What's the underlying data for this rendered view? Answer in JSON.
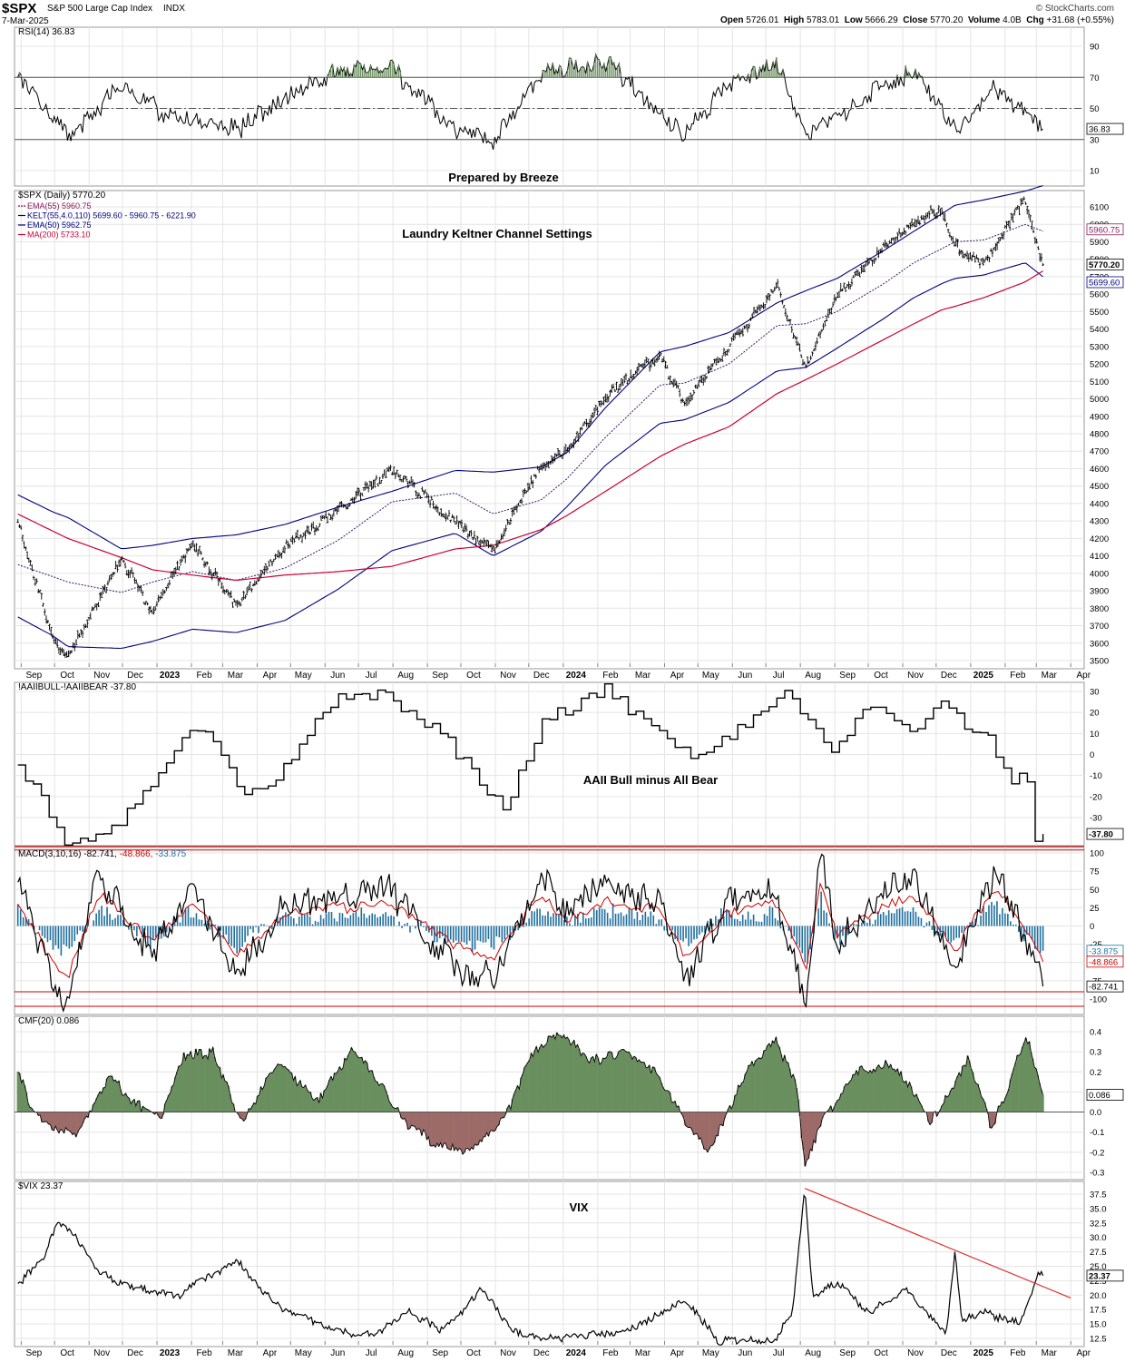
{
  "header": {
    "symbol": "$SPX",
    "name": "S&P 500 Large Cap Index",
    "exchange": "INDX",
    "date": "7-Mar-2025",
    "watermark": "© StockCharts.com",
    "ohlc": {
      "open_label": "Open",
      "open": "5726.01",
      "high_label": "High",
      "high": "5783.01",
      "low_label": "Low",
      "low": "5666.29",
      "close_label": "Close",
      "close": "5770.20",
      "volume_label": "Volume",
      "volume": "4.0B",
      "chg_label": "Chg",
      "chg": "+31.68 (+0.55%)"
    }
  },
  "x_axis": {
    "labels": [
      "Sep",
      "Oct",
      "Nov",
      "Dec",
      "2023",
      "Feb",
      "Mar",
      "Apr",
      "May",
      "Jun",
      "Jul",
      "Aug",
      "Sep",
      "Oct",
      "Nov",
      "Dec",
      "2024",
      "Feb",
      "Mar",
      "Apr",
      "May",
      "Jun",
      "Jul",
      "Aug",
      "Sep",
      "Oct",
      "Nov",
      "Dec",
      "2025",
      "Feb",
      "Mar",
      "Apr"
    ],
    "bold": [
      "2023",
      "2024",
      "2025"
    ]
  },
  "chart_data": [
    {
      "id": "rsi",
      "type": "line",
      "title": "RSI(14) 36.83",
      "ylim": [
        0,
        100
      ],
      "ticks": [
        10,
        30,
        50,
        70,
        90
      ],
      "reference_lines": [
        30,
        50,
        70
      ],
      "last_value_label": "36.83",
      "last_value": 36.83,
      "annotation": "Prepared by Breeze",
      "x": [
        "2022-08-29",
        "2022-10-13",
        "2022-11-30",
        "2023-01-12",
        "2023-03-13",
        "2023-04-26",
        "2023-06-13",
        "2023-07-31",
        "2023-09-26",
        "2023-10-30",
        "2023-12-12",
        "2024-02-08",
        "2024-04-19",
        "2024-05-29",
        "2024-07-11",
        "2024-08-06",
        "2024-10-15",
        "2024-11-11",
        "2024-12-18",
        "2025-01-22",
        "2025-03-07"
      ],
      "values": [
        70,
        32,
        64,
        45,
        36,
        58,
        74,
        76,
        35,
        30,
        72,
        80,
        33,
        67,
        80,
        32,
        67,
        72,
        35,
        64,
        36.83
      ]
    },
    {
      "id": "price",
      "type": "line",
      "title": "$SPX (Daily) 5770.20",
      "annotation": "Laundry Keltner Channel Settings",
      "legend": [
        {
          "label": "EMA(55) 5960.75",
          "color": "#8b1a5a",
          "dashed": true
        },
        {
          "label": "KELT(55,4.0,110) 5699.60 - 5960.75 - 6221.90",
          "color": "#000080",
          "dashed": false
        },
        {
          "label": "EMA(50) 5962.75",
          "color": "#000080",
          "dashed": false
        },
        {
          "label": "MA(200) 5733.10",
          "color": "#cc0033",
          "dashed": false
        }
      ],
      "ylim": [
        3450,
        6200
      ],
      "ticks": [
        3500,
        3600,
        3700,
        3800,
        3900,
        4000,
        4100,
        4200,
        4300,
        4400,
        4500,
        4600,
        4700,
        4800,
        4900,
        5000,
        5100,
        5200,
        5300,
        5400,
        5500,
        5600,
        5700,
        5800,
        5900,
        6000,
        6100
      ],
      "last_value_labels": [
        {
          "label": "5960.75",
          "value": 5960.75
        },
        {
          "label": "5770.20",
          "value": 5770.2
        },
        {
          "label": "5699.60",
          "value": 5699.6
        }
      ],
      "x": [
        "2022-08-29",
        "2022-09-30",
        "2022-10-13",
        "2022-11-30",
        "2022-12-28",
        "2023-02-02",
        "2023-03-13",
        "2023-04-26",
        "2023-06-13",
        "2023-07-31",
        "2023-09-26",
        "2023-10-30",
        "2023-12-12",
        "2024-01-04",
        "2024-02-08",
        "2024-03-28",
        "2024-04-19",
        "2024-05-29",
        "2024-07-11",
        "2024-08-06",
        "2024-09-03",
        "2024-10-15",
        "2024-11-11",
        "2024-12-06",
        "2024-12-18",
        "2025-01-13",
        "2025-02-19",
        "2025-03-07"
      ],
      "series": [
        {
          "name": "$SPX",
          "values": [
            4300,
            3620,
            3530,
            4080,
            3780,
            4180,
            3810,
            4150,
            4370,
            4590,
            4300,
            4130,
            4620,
            4690,
            5010,
            5250,
            4970,
            5300,
            5640,
            5180,
            5590,
            5870,
            6010,
            6090,
            5870,
            5780,
            6140,
            5770.2
          ]
        },
        {
          "name": "KELT upper",
          "values": [
            4450,
            4350,
            4320,
            4140,
            4160,
            4200,
            4220,
            4280,
            4380,
            4470,
            4590,
            4580,
            4610,
            4690,
            4950,
            5270,
            5300,
            5380,
            5550,
            5620,
            5690,
            5850,
            5960,
            6060,
            6110,
            6140,
            6190,
            6221.9
          ]
        },
        {
          "name": "EMA(55)",
          "values": [
            4050,
            3980,
            3950,
            3890,
            3950,
            4010,
            3960,
            4030,
            4190,
            4410,
            4460,
            4340,
            4420,
            4540,
            4780,
            5080,
            5090,
            5200,
            5420,
            5430,
            5500,
            5660,
            5780,
            5860,
            5900,
            5910,
            6000,
            5960.75
          ]
        },
        {
          "name": "KELT lower",
          "values": [
            3750,
            3640,
            3580,
            3570,
            3610,
            3680,
            3660,
            3730,
            3910,
            4130,
            4230,
            4100,
            4240,
            4380,
            4620,
            4860,
            4880,
            4980,
            5160,
            5180,
            5290,
            5460,
            5580,
            5660,
            5690,
            5710,
            5780,
            5699.6
          ]
        },
        {
          "name": "MA(200)",
          "values": [
            4340,
            4240,
            4200,
            4090,
            4020,
            3990,
            3960,
            3990,
            4010,
            4040,
            4140,
            4160,
            4250,
            4330,
            4470,
            4670,
            4740,
            4840,
            5030,
            5110,
            5200,
            5340,
            5430,
            5510,
            5530,
            5580,
            5670,
            5733.1
          ]
        }
      ]
    },
    {
      "id": "aaii",
      "type": "line",
      "title": "!AAIIBULL-!AAIIBEAR -37.80",
      "annotation": "AAII Bull minus All Bear",
      "ylim": [
        -45,
        35
      ],
      "ticks": [
        -30,
        -20,
        -10,
        0,
        10,
        20,
        30
      ],
      "reference_lines": [
        -45
      ],
      "last_value_label": "-37.80",
      "last_value": -37.8,
      "x": [
        "2022-08-29",
        "2022-09-22",
        "2022-10-13",
        "2022-11-30",
        "2023-01-12",
        "2023-02-09",
        "2023-03-16",
        "2023-04-20",
        "2023-06-13",
        "2023-07-20",
        "2023-09-14",
        "2023-10-26",
        "2023-11-09",
        "2023-12-14",
        "2024-02-08",
        "2024-04-25",
        "2024-05-29",
        "2024-07-18",
        "2024-08-29",
        "2024-10-03",
        "2024-11-07",
        "2024-12-05",
        "2025-01-16",
        "2025-02-06",
        "2025-02-20",
        "2025-02-27",
        "2025-03-07"
      ],
      "values": [
        -5,
        -22,
        -43,
        -33,
        2,
        12,
        -18,
        -8,
        28,
        30,
        8,
        -18,
        -26,
        18,
        32,
        -2,
        10,
        30,
        -2,
        26,
        10,
        21,
        10,
        -10,
        -12,
        -40,
        -37.8
      ]
    },
    {
      "id": "macd",
      "type": "line",
      "title": "MACD(3,10,16) -82.741, -48.866, -33.875",
      "title_parts": [
        "MACD(3,10,16)",
        "-82.741,",
        "-48.866,",
        "-33.875"
      ],
      "ylim": [
        -115,
        110
      ],
      "ticks": [
        -100,
        -75,
        -50,
        -25,
        0,
        25,
        50,
        75,
        100
      ],
      "reference_lines": [
        -90,
        -110
      ],
      "last_value_labels": [
        {
          "label": "-33.875",
          "value": -33.875,
          "color": "#1f6f9e"
        },
        {
          "label": "-48.866",
          "value": -48.866,
          "color": "#cc0000"
        },
        {
          "label": "-82.741",
          "value": -82.741,
          "color": "#000000"
        }
      ],
      "x": [
        "2022-08-29",
        "2022-09-30",
        "2022-10-13",
        "2022-11-10",
        "2022-12-28",
        "2023-02-02",
        "2023-03-13",
        "2023-04-26",
        "2023-06-13",
        "2023-07-31",
        "2023-09-26",
        "2023-10-30",
        "2023-12-12",
        "2024-01-04",
        "2024-02-08",
        "2024-03-28",
        "2024-04-19",
        "2024-05-29",
        "2024-07-11",
        "2024-08-06",
        "2024-08-19",
        "2024-09-03",
        "2024-10-15",
        "2024-11-11",
        "2024-12-18",
        "2025-01-22",
        "2025-02-19",
        "2025-03-07"
      ],
      "series": [
        {
          "name": "MACD",
          "values": [
            60,
            -80,
            -105,
            70,
            -40,
            50,
            -70,
            30,
            40,
            45,
            -55,
            -70,
            70,
            20,
            55,
            30,
            -75,
            40,
            45,
            -110,
            100,
            -30,
            50,
            60,
            -60,
            80,
            -20,
            -82.741
          ]
        },
        {
          "name": "Signal",
          "values": [
            30,
            -50,
            -70,
            45,
            -20,
            30,
            -40,
            15,
            25,
            30,
            -30,
            -45,
            45,
            10,
            35,
            20,
            -45,
            20,
            30,
            -60,
            60,
            -10,
            30,
            40,
            -35,
            50,
            0,
            -48.866
          ]
        },
        {
          "name": "Histogram",
          "values": [
            30,
            -30,
            -35,
            25,
            -20,
            20,
            -30,
            15,
            15,
            15,
            -25,
            -25,
            25,
            10,
            20,
            10,
            -30,
            20,
            15,
            -50,
            40,
            -20,
            20,
            20,
            -25,
            30,
            -20,
            -33.875
          ]
        }
      ]
    },
    {
      "id": "cmf",
      "type": "area",
      "title": "CMF(20) 0.086",
      "ylim": [
        -0.35,
        0.45
      ],
      "ticks": [
        -0.3,
        -0.2,
        -0.1,
        0.0,
        0.1,
        0.2,
        0.3,
        0.4
      ],
      "tick_labels": [
        "-0.3",
        "-0.2",
        "-0.1",
        "0.0",
        "0.1",
        "0.2",
        "0.3",
        "0.4"
      ],
      "last_value_label": "0.086",
      "last_value": 0.086,
      "positive_color": "#6a8f5e",
      "negative_color": "#9c6b68",
      "x": [
        "2022-08-29",
        "2022-09-10",
        "2022-09-29",
        "2022-10-20",
        "2022-11-20",
        "2022-12-10",
        "2023-01-05",
        "2023-01-25",
        "2023-02-20",
        "2023-03-18",
        "2023-04-20",
        "2023-05-25",
        "2023-06-25",
        "2023-07-20",
        "2023-08-10",
        "2023-09-05",
        "2023-10-01",
        "2023-10-25",
        "2023-11-15",
        "2023-12-05",
        "2024-01-01",
        "2024-01-25",
        "2024-02-25",
        "2024-03-25",
        "2024-04-20",
        "2024-05-10",
        "2024-06-15",
        "2024-07-10",
        "2024-07-28",
        "2024-08-05",
        "2024-08-20",
        "2024-09-20",
        "2024-10-20",
        "2024-11-10",
        "2024-11-25",
        "2024-12-15",
        "2024-12-30",
        "2025-01-20",
        "2025-02-05",
        "2025-02-20",
        "2025-03-07"
      ],
      "values": [
        0.2,
        0.02,
        -0.08,
        -0.12,
        0.18,
        0.05,
        -0.02,
        0.28,
        0.3,
        -0.05,
        0.25,
        0.05,
        0.3,
        0.15,
        -0.05,
        -0.15,
        -0.2,
        -0.12,
        0.04,
        0.3,
        0.4,
        0.25,
        0.3,
        0.2,
        -0.05,
        -0.2,
        0.22,
        0.35,
        0.15,
        -0.28,
        -0.05,
        0.2,
        0.25,
        0.1,
        -0.06,
        0.1,
        0.28,
        -0.08,
        0.15,
        0.38,
        0.086
      ]
    },
    {
      "id": "vix",
      "type": "line",
      "title": "$VIX 23.37",
      "annotation": "VIX",
      "ylim": [
        11,
        39
      ],
      "ticks": [
        12.5,
        15.0,
        17.5,
        20.0,
        22.5,
        25.0,
        27.5,
        30.0,
        32.5,
        35.0,
        37.5
      ],
      "tick_labels": [
        "12.5",
        "15.0",
        "17.5",
        "20.0",
        "22.5",
        "25.0",
        "27.5",
        "30.0",
        "32.5",
        "35.0",
        "37.5"
      ],
      "last_value_label": "23.37",
      "last_value": 23.37,
      "trendline": {
        "x": [
          "2024-08-05",
          "2025-04-01"
        ],
        "values": [
          38.5,
          19.5
        ]
      },
      "x": [
        "2022-08-29",
        "2022-09-20",
        "2022-10-05",
        "2022-10-20",
        "2022-11-10",
        "2022-12-15",
        "2023-01-20",
        "2023-03-13",
        "2023-04-20",
        "2023-06-10",
        "2023-07-15",
        "2023-08-15",
        "2023-09-15",
        "2023-10-20",
        "2023-11-15",
        "2023-12-15",
        "2024-01-20",
        "2024-03-01",
        "2024-04-19",
        "2024-05-20",
        "2024-07-10",
        "2024-07-25",
        "2024-08-05",
        "2024-08-12",
        "2024-09-06",
        "2024-10-01",
        "2024-11-05",
        "2024-12-10",
        "2024-12-18",
        "2024-12-24",
        "2025-01-15",
        "2025-02-14",
        "2025-03-03",
        "2025-03-07"
      ],
      "values": [
        22,
        26,
        33,
        30,
        24,
        21,
        20,
        26,
        18,
        14,
        13,
        17,
        14,
        21,
        14,
        12.5,
        13,
        14,
        19,
        12,
        12.5,
        17,
        38.2,
        20,
        22,
        17,
        21,
        13.5,
        27.6,
        16,
        17,
        15,
        24,
        23.37
      ]
    }
  ]
}
